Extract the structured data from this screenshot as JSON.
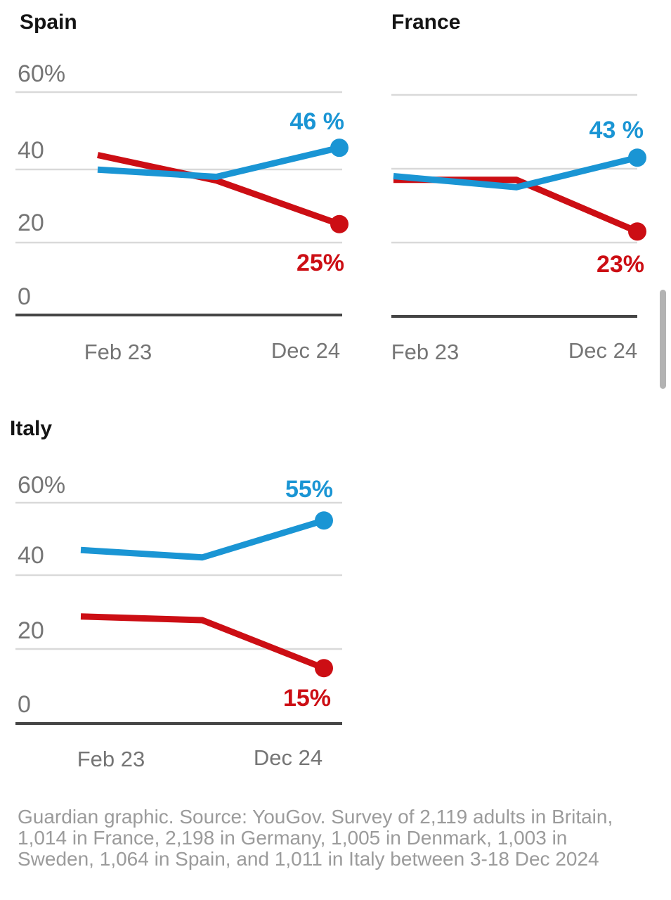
{
  "colors": {
    "blue": "#1a95d4",
    "red": "#cc0e14",
    "grid": "#d9d9d9",
    "axis": "#454545",
    "tick_gray": "#757575",
    "title_black": "#141414",
    "caption_gray": "#9b9b9b",
    "scrollbar_gray": "#b3b3b3"
  },
  "chart_data": [
    {
      "type": "line",
      "title": "Spain",
      "x_ticks": [
        "Feb 23",
        "Dec 24"
      ],
      "y_ticks": [
        "60%",
        "40",
        "20",
        "0"
      ],
      "ylim": [
        0,
        65
      ],
      "grid": "on",
      "legend": "none",
      "note": "three survey waves plotted; only first and last are labeled on x-axis",
      "series": [
        {
          "name": "blue-series",
          "color_key": "blue",
          "values": [
            40,
            38,
            46
          ],
          "end_label": "46 %"
        },
        {
          "name": "red-series",
          "color_key": "red",
          "values": [
            44,
            37,
            25
          ],
          "end_label": "25%"
        }
      ]
    },
    {
      "type": "line",
      "title": "France",
      "x_ticks": [
        "Feb 23",
        "Dec 24"
      ],
      "y_ticks": [],
      "ylim": [
        0,
        65
      ],
      "grid": "on",
      "legend": "none",
      "note": "three survey waves plotted; only first and last are labeled on x-axis",
      "series": [
        {
          "name": "blue-series",
          "color_key": "blue",
          "values": [
            38,
            35,
            43
          ],
          "end_label": "43 %"
        },
        {
          "name": "red-series",
          "color_key": "red",
          "values": [
            37,
            37,
            23
          ],
          "end_label": "23%"
        }
      ]
    },
    {
      "type": "line",
      "title": "Italy",
      "x_ticks": [
        "Feb 23",
        "Dec 24"
      ],
      "y_ticks": [
        "60%",
        "40",
        "20",
        "0"
      ],
      "ylim": [
        0,
        65
      ],
      "grid": "on",
      "legend": "none",
      "note": "three survey waves plotted; only first and last are labeled on x-axis",
      "series": [
        {
          "name": "blue-series",
          "color_key": "blue",
          "values": [
            47,
            45,
            55
          ],
          "end_label": "55%"
        },
        {
          "name": "red-series",
          "color_key": "red",
          "values": [
            29,
            28,
            15
          ],
          "end_label": "15%"
        }
      ]
    }
  ],
  "caption": {
    "lines": [
      "Guardian graphic. Source: YouGov. Survey of 2,119 adults in Britain,",
      "1,014 in France, 2,198 in Germany, 1,005 in Denmark, 1,003 in",
      "Sweden, 1,064 in Spain, and 1,011 in Italy between 3-18 Dec 2024"
    ]
  }
}
